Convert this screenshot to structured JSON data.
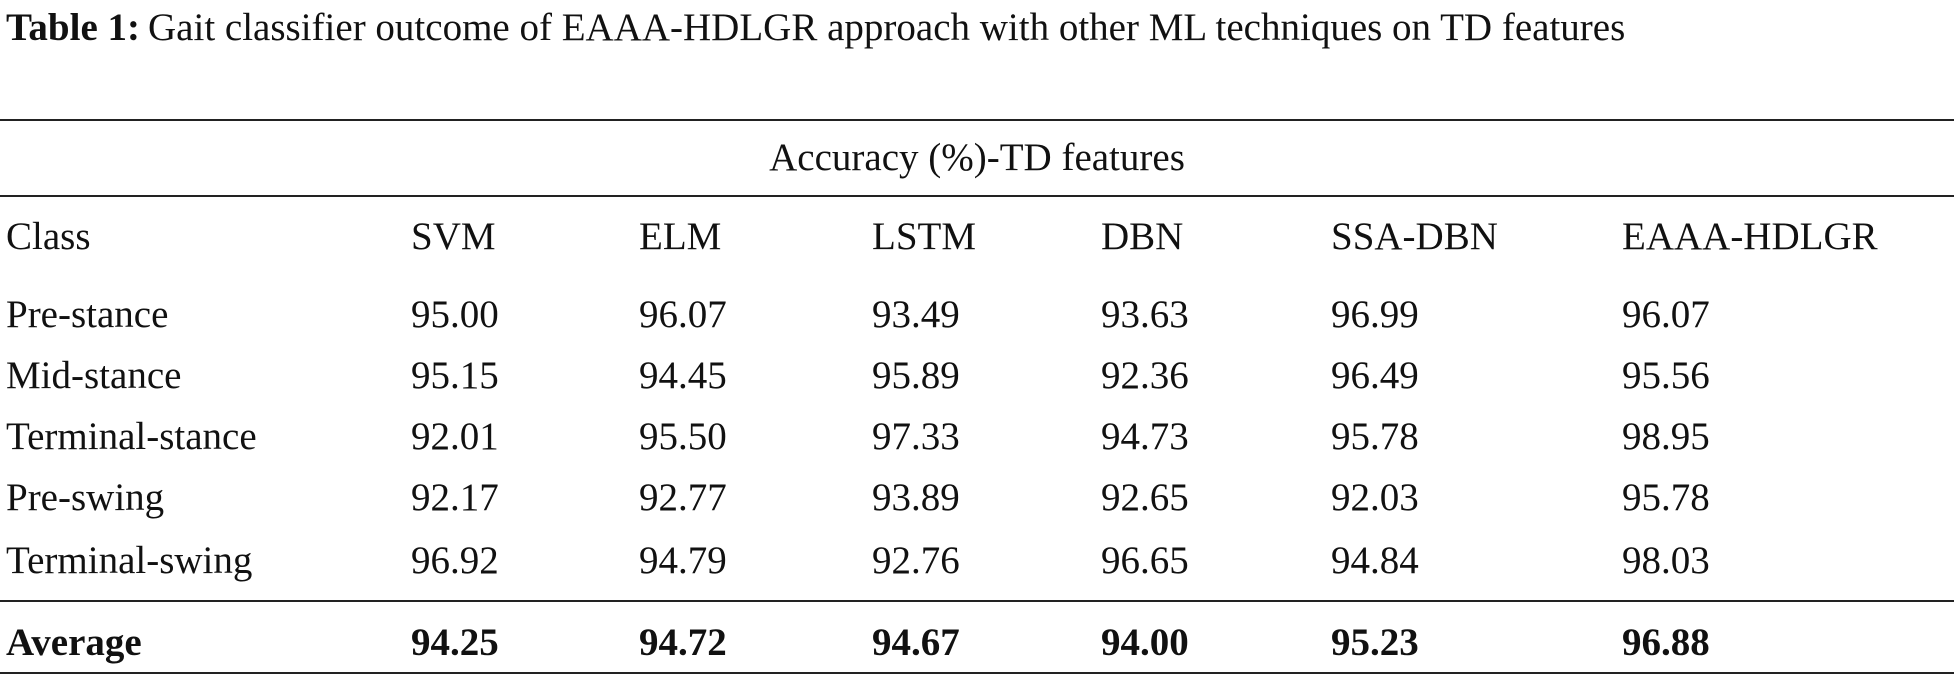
{
  "caption": {
    "label": "Table 1:",
    "text": "Gait classifier outcome of EAAA-HDLGR approach with other ML techniques on TD features"
  },
  "table": {
    "group_header": "Accuracy (%)-TD features",
    "columns": [
      "Class",
      "SVM",
      "ELM",
      "LSTM",
      "DBN",
      "SSA-DBN",
      "EAAA-HDLGR"
    ],
    "rows": [
      [
        "Pre-stance",
        "95.00",
        "96.07",
        "93.49",
        "93.63",
        "96.99",
        "96.07"
      ],
      [
        "Mid-stance",
        "95.15",
        "94.45",
        "95.89",
        "92.36",
        "96.49",
        "95.56"
      ],
      [
        "Terminal-stance",
        "92.01",
        "95.50",
        "97.33",
        "94.73",
        "95.78",
        "98.95"
      ],
      [
        "Pre-swing",
        "92.17",
        "92.77",
        "93.89",
        "92.65",
        "92.03",
        "95.78"
      ],
      [
        "Terminal-swing",
        "96.92",
        "94.79",
        "92.76",
        "96.65",
        "94.84",
        "98.03"
      ]
    ],
    "average": [
      "Average",
      "94.25",
      "94.72",
      "94.67",
      "94.00",
      "95.23",
      "96.88"
    ]
  }
}
